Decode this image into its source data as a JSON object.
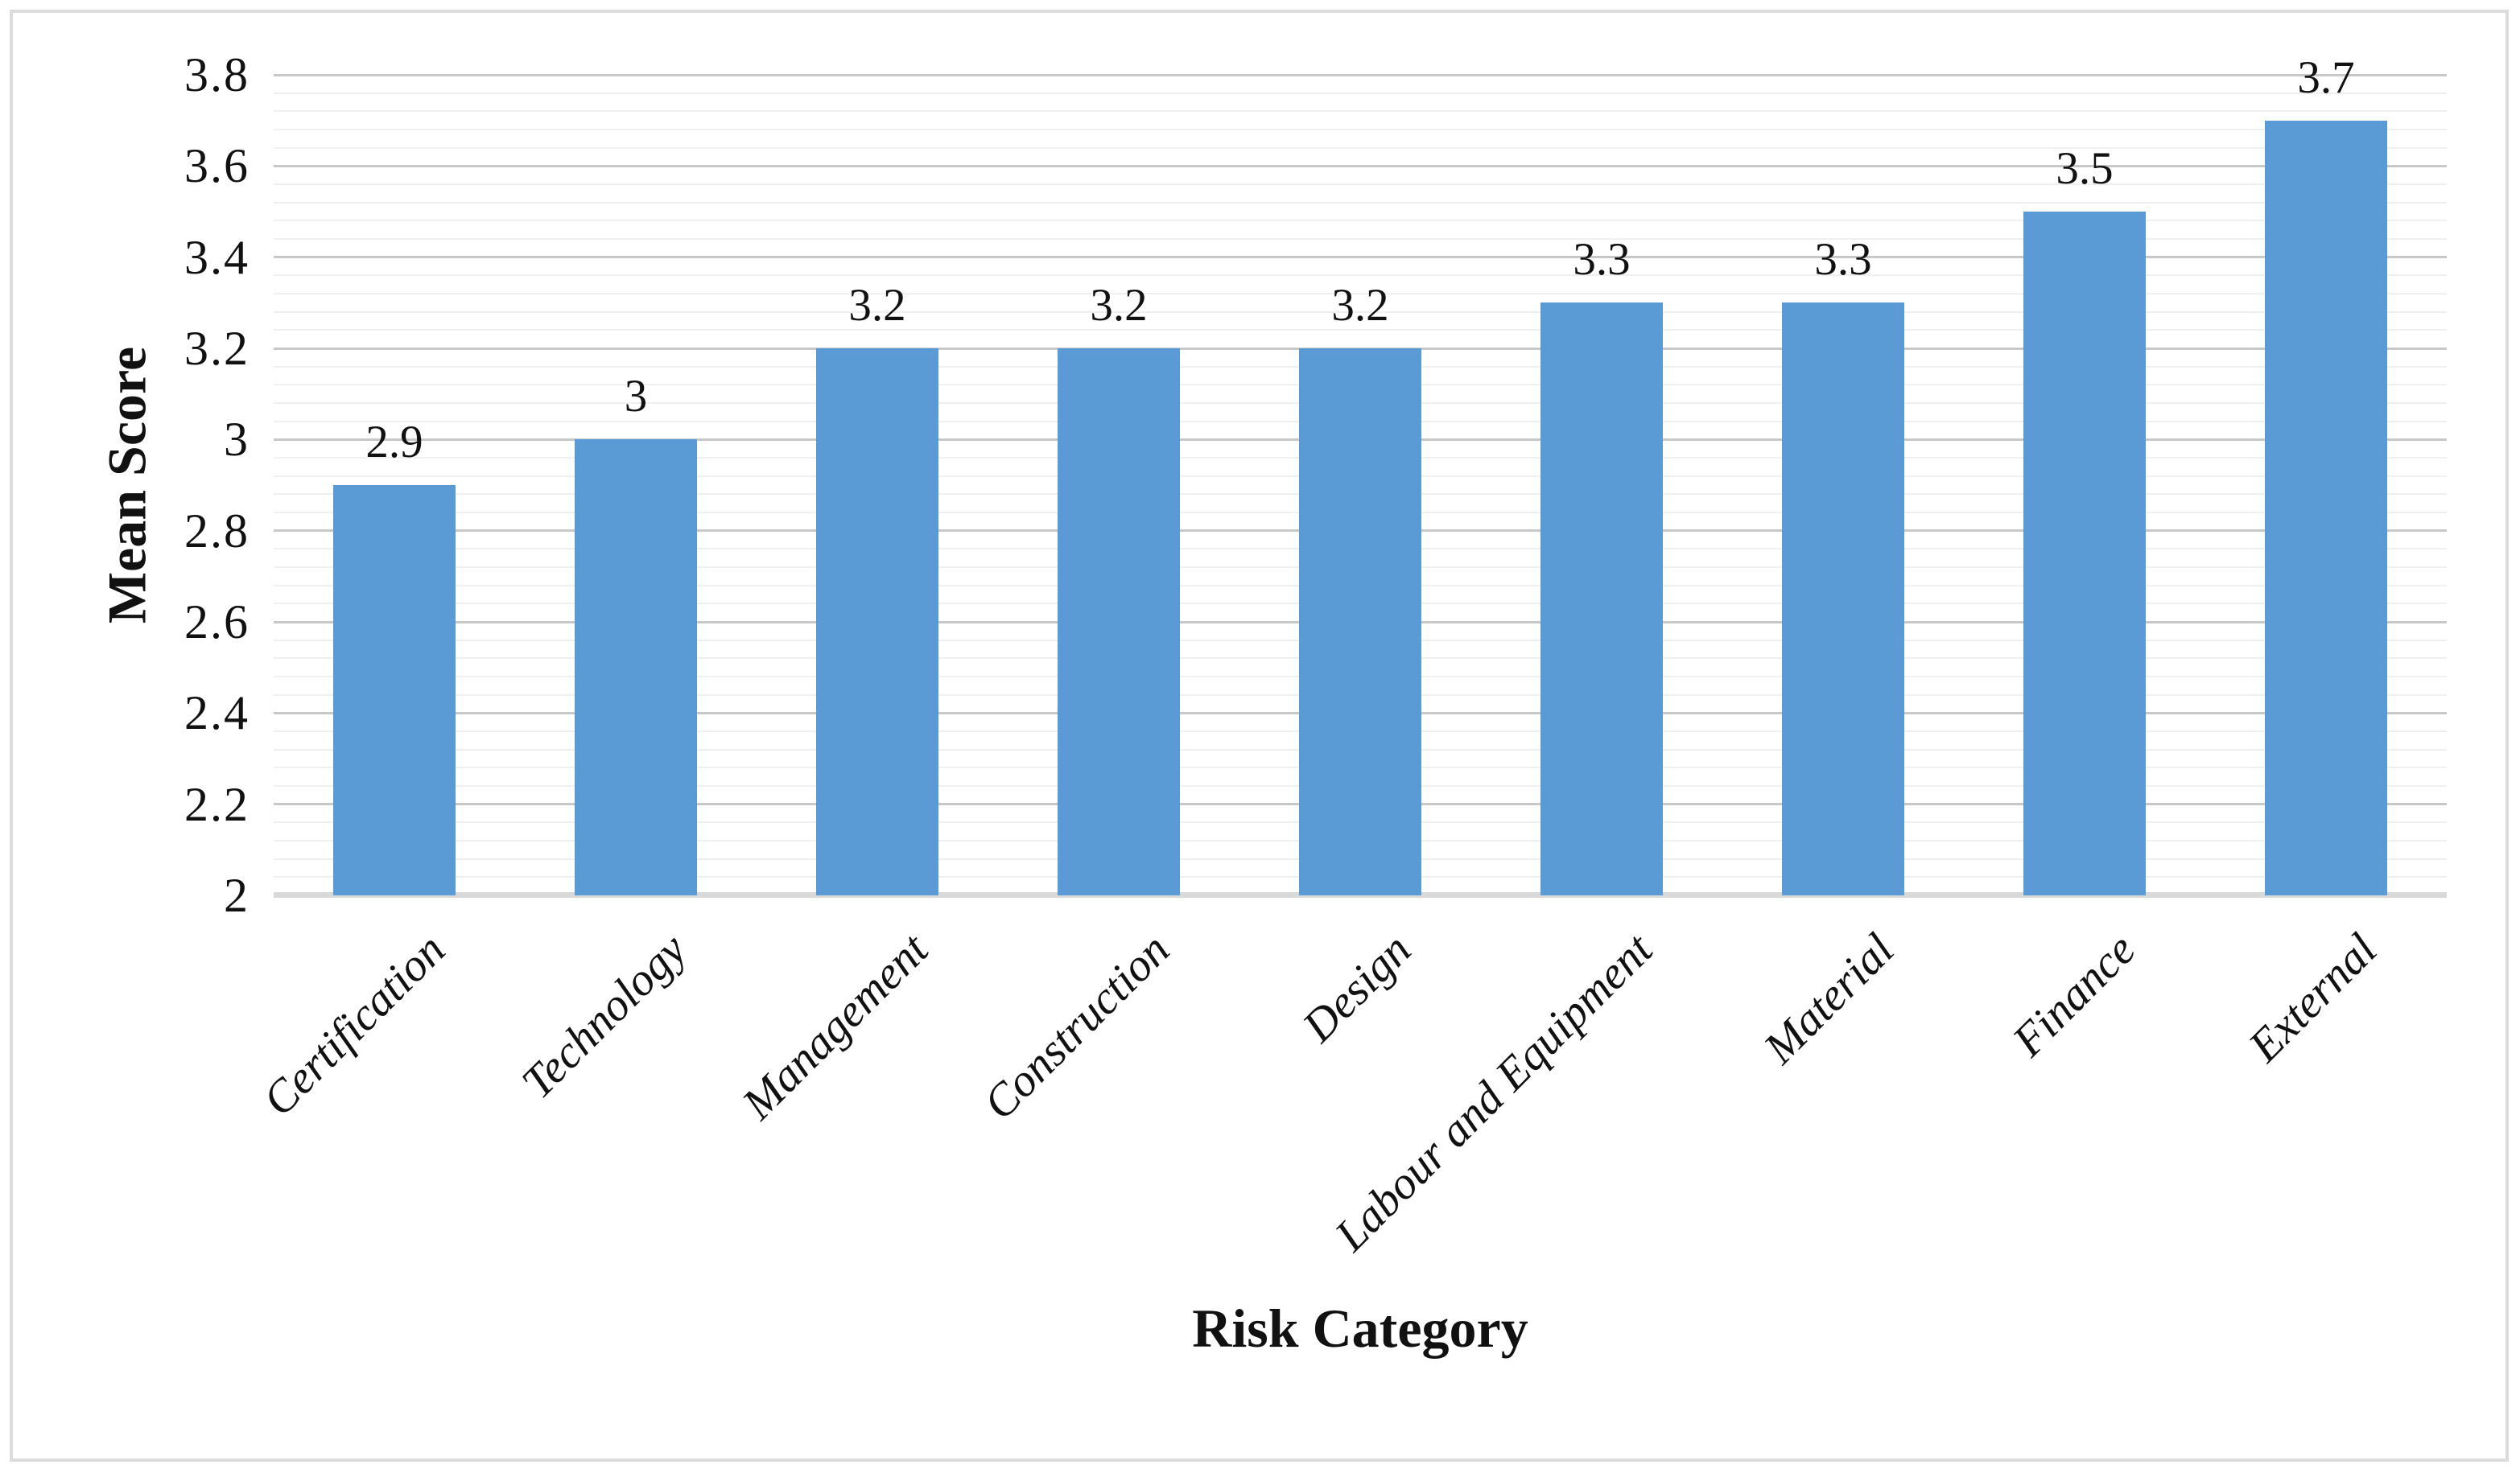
{
  "chart_data": {
    "type": "bar",
    "title": "",
    "xlabel": "Risk Category",
    "ylabel": "Mean Score",
    "categories": [
      "Certification",
      "Technology",
      "Management",
      "Construction",
      "Design",
      "Labour and Equipment",
      "Material",
      "Finance",
      "External"
    ],
    "values": [
      2.9,
      3,
      3.2,
      3.2,
      3.2,
      3.3,
      3.3,
      3.5,
      3.7
    ],
    "value_labels": [
      "2.9",
      "3",
      "3.2",
      "3.2",
      "3.2",
      "3.3",
      "3.3",
      "3.5",
      "3.7"
    ],
    "ylim": [
      2,
      3.8
    ],
    "ytick_labels": [
      "3.8",
      "3.6",
      "3.4",
      "3.2",
      "3",
      "2.8",
      "2.6",
      "2.4",
      "2.2",
      "2"
    ],
    "ymajor_step": 0.2,
    "yminor_step": 0.04,
    "grid": "horizontal major + minor",
    "legend": "none",
    "bar_color": "#5B9BD5",
    "major_grid_color": "#c8c8c8",
    "minor_grid_color": "#f0f0f0",
    "axis_line_color": "#d9d9d9",
    "figure_border_color": "#dcdcdc",
    "text_color": "#111111"
  }
}
